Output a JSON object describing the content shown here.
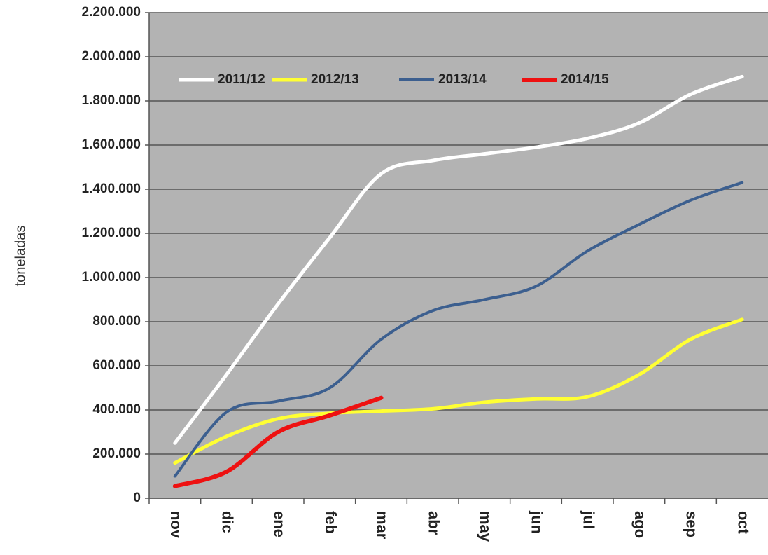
{
  "chart_data": {
    "type": "line",
    "ylabel": "toneladas",
    "categories": [
      "nov",
      "dic",
      "ene",
      "feb",
      "mar",
      "abr",
      "may",
      "jun",
      "jul",
      "ago",
      "sep",
      "oct"
    ],
    "series": [
      {
        "name": "2011/12",
        "color": "#ffffff",
        "values": [
          250000,
          560000,
          880000,
          1180000,
          1470000,
          1530000,
          1560000,
          1590000,
          1630000,
          1700000,
          1830000,
          1910000
        ]
      },
      {
        "name": "2012/13",
        "color": "#ffff33",
        "values": [
          160000,
          280000,
          360000,
          385000,
          395000,
          405000,
          435000,
          450000,
          460000,
          560000,
          720000,
          810000
        ]
      },
      {
        "name": "2013/14",
        "color": "#3c5f8f",
        "values": [
          100000,
          390000,
          440000,
          500000,
          720000,
          850000,
          900000,
          960000,
          1120000,
          1240000,
          1350000,
          1430000
        ]
      },
      {
        "name": "2014/15",
        "color": "#ee1111",
        "values": [
          55000,
          120000,
          300000,
          375000,
          455000,
          null,
          null,
          null,
          null,
          null,
          null,
          null
        ]
      }
    ],
    "ylim": [
      0,
      2200000
    ],
    "yticks": [
      0,
      {
        "value": 200000,
        "label": "200.000"
      },
      {
        "value": 400000,
        "label": "400.000"
      },
      {
        "value": 600000,
        "label": "600.000"
      },
      {
        "value": 800000,
        "label": "800.000"
      },
      {
        "value": 1000000,
        "label": "1.000.000"
      },
      {
        "value": 1200000,
        "label": "1.200.000"
      },
      {
        "value": 1400000,
        "label": "1.400.000"
      },
      {
        "value": 1600000,
        "label": "1.600.000"
      },
      {
        "value": 1800000,
        "label": "1.800.000"
      },
      {
        "value": 2000000,
        "label": "2.000.000"
      },
      {
        "value": 2200000,
        "label": "2.200.000"
      }
    ],
    "grid": true
  }
}
